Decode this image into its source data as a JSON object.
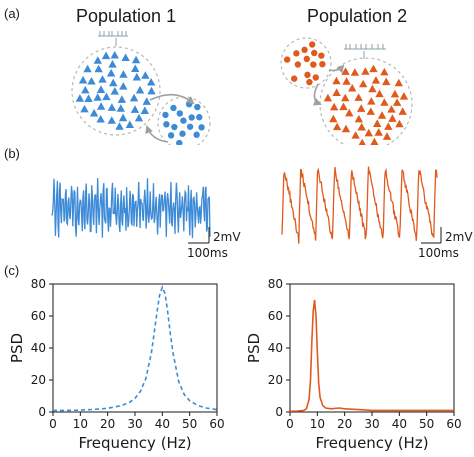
{
  "panel_labels": {
    "a": "(a)",
    "b": "(b)",
    "c": "(c)"
  },
  "populations": [
    {
      "title": "Population 1",
      "color": "#3d8ad6"
    },
    {
      "title": "Population 2",
      "color": "#e05a1e"
    }
  ],
  "traces": [
    {
      "scale_voltage": "2mV",
      "scale_time": "100ms"
    },
    {
      "scale_voltage": "2mV",
      "scale_time": "100ms"
    }
  ],
  "chart_data": [
    {
      "type": "line",
      "line_style": "dashed",
      "color": "#3d8ad6",
      "xlabel": "Frequency (Hz)",
      "ylabel": "PSD",
      "xlim": [
        0,
        60
      ],
      "ylim": [
        0,
        80
      ],
      "xticks": [
        0,
        10,
        20,
        30,
        40,
        50,
        60
      ],
      "yticks": [
        0,
        20,
        40,
        60,
        80
      ],
      "x": [
        0,
        5,
        10,
        15,
        20,
        25,
        28,
        30,
        32,
        34,
        36,
        37,
        38,
        39,
        40,
        41,
        42,
        43,
        44,
        46,
        48,
        50,
        53,
        56,
        60
      ],
      "y": [
        1,
        1,
        1.2,
        1.6,
        2.3,
        4,
        6,
        8.5,
        13,
        21,
        37,
        49,
        62,
        73,
        78,
        74,
        62,
        48,
        36,
        19,
        11,
        7,
        4,
        2.5,
        1.5
      ]
    },
    {
      "type": "line",
      "line_style": "solid",
      "color": "#e05a1e",
      "xlabel": "Frequency (Hz)",
      "ylabel": "PSD",
      "xlim": [
        0,
        60
      ],
      "ylim": [
        0,
        80
      ],
      "xticks": [
        0,
        10,
        20,
        30,
        40,
        50,
        60
      ],
      "yticks": [
        0,
        20,
        40,
        60,
        80
      ],
      "x": [
        0,
        3,
        5,
        6,
        7,
        7.5,
        8,
        8.5,
        9,
        9.5,
        10,
        10.5,
        11,
        12,
        13,
        15,
        18,
        20,
        25,
        30,
        40,
        50,
        60
      ],
      "y": [
        0.5,
        0.6,
        1,
        2,
        8,
        20,
        45,
        63,
        70,
        60,
        38,
        18,
        9,
        4,
        2.5,
        2,
        2.5,
        2,
        1.5,
        1,
        1,
        1,
        1
      ]
    }
  ]
}
